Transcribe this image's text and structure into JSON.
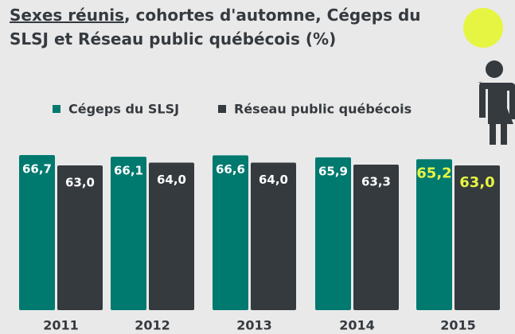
{
  "chart_data": {
    "type": "bar",
    "title": {
      "underlined": "Sexes réunis",
      "rest": ", cohortes d'automne, Cégeps du SLSJ et Réseau public québécois (%)"
    },
    "categories": [
      "2011",
      "2012",
      "2013",
      "2014",
      "2015"
    ],
    "series": [
      {
        "name": "Cégeps du SLSJ",
        "color": "#00796f",
        "values": [
          66.7,
          66.1,
          66.6,
          65.9,
          65.2
        ],
        "value_labels": [
          "66,7",
          "66,1",
          "66,6",
          "65,9",
          "65,2"
        ]
      },
      {
        "name": "Réseau public québécois",
        "color": "#353a3f",
        "values": [
          63.0,
          64.0,
          64.0,
          63.3,
          63.0
        ],
        "value_labels": [
          "63,0",
          "64,0",
          "64,0",
          "63,3",
          "63,0"
        ]
      }
    ],
    "ylim": [
      11,
      71
    ],
    "highlight": "2015",
    "highlight_color": "#e6f542",
    "legend": "top"
  }
}
